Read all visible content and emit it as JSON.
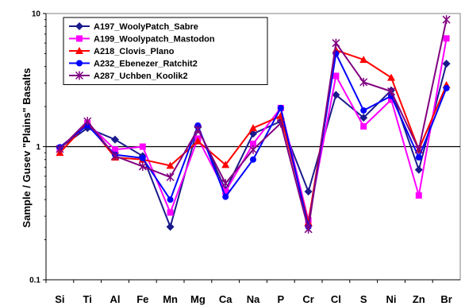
{
  "chart_data": {
    "type": "line",
    "y_scale": "log",
    "ylim": [
      0.1,
      10
    ],
    "ylabel": "Sample / Gusev \"Plains\" Basalts",
    "yticks": [
      {
        "value": 0.1,
        "label": "0.1"
      },
      {
        "value": 1,
        "label": "1"
      },
      {
        "value": 10,
        "label": "10"
      }
    ],
    "reference_line": 1,
    "legend_position": "top-left",
    "categories": [
      "Si",
      "Ti",
      "Al",
      "Fe",
      "Mn",
      "Mg",
      "Ca",
      "Na",
      "P",
      "Cr",
      "Cl",
      "S",
      "Ni",
      "Zn",
      "Br"
    ],
    "series": [
      {
        "name": "A197_WoolyPatch_Sabre",
        "color": "#1a1a8c",
        "marker": "diamond",
        "values": [
          0.98,
          1.38,
          1.13,
          0.85,
          0.25,
          1.4,
          0.47,
          1.25,
          1.55,
          0.46,
          2.45,
          1.65,
          2.65,
          0.67,
          4.2
        ]
      },
      {
        "name": "A199_Woolypatch_Mastodon",
        "color": "#ff00ff",
        "marker": "square",
        "values": [
          0.97,
          1.5,
          0.95,
          1.0,
          0.32,
          1.15,
          0.46,
          1.05,
          1.95,
          0.28,
          3.4,
          1.42,
          2.25,
          0.43,
          6.5
        ]
      },
      {
        "name": "A218_Clovis_Plano",
        "color": "#ff0000",
        "marker": "triangle",
        "values": [
          0.9,
          1.5,
          0.83,
          0.8,
          0.72,
          1.1,
          0.73,
          1.38,
          1.7,
          0.27,
          5.3,
          4.5,
          3.3,
          0.95,
          2.9
        ]
      },
      {
        "name": "A232_Ebenezer_Ratchit2",
        "color": "#0000ff",
        "marker": "circle",
        "values": [
          0.99,
          1.45,
          0.87,
          0.82,
          0.4,
          1.44,
          0.42,
          0.8,
          1.95,
          0.25,
          5.0,
          1.87,
          2.4,
          0.83,
          2.75
        ]
      },
      {
        "name": "A287_Uchben_Koolik2",
        "color": "#800080",
        "marker": "asterisk",
        "values": [
          0.96,
          1.55,
          0.85,
          0.71,
          0.59,
          1.35,
          0.53,
          0.95,
          1.5,
          0.24,
          6.0,
          3.05,
          2.6,
          0.95,
          9.0
        ]
      }
    ]
  }
}
